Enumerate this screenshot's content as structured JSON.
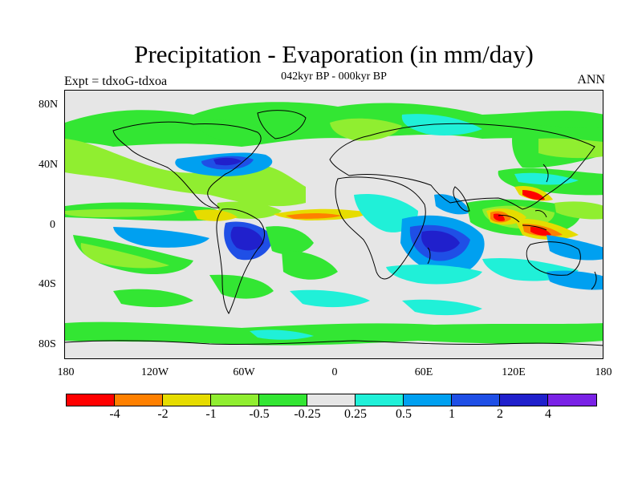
{
  "header": {
    "title": "Precipitation - Evaporation (in mm/day)",
    "subtitle": "042kyr BP - 000kyr BP",
    "left_label": "Expt = tdxoG-tdxoa",
    "right_label": "ANN"
  },
  "axes": {
    "y_ticks": [
      "80N",
      "40N",
      "0",
      "40S",
      "80S"
    ],
    "x_ticks": [
      "180",
      "120W",
      "60W",
      "0",
      "60E",
      "120E",
      "180"
    ]
  },
  "colorbar": {
    "colors": [
      "#ff0000",
      "#ff8000",
      "#e6dc00",
      "#90ee30",
      "#33e633",
      "#e6e6e6",
      "#20f0d8",
      "#00a0f0",
      "#1f4fe6",
      "#2020cc",
      "#7a22e6"
    ],
    "labels": [
      "-4",
      "-2",
      "-1",
      "-0.5",
      "-0.25",
      "0.25",
      "0.5",
      "1",
      "2",
      "4"
    ]
  },
  "map": {
    "background": "#e6e6e6",
    "coastline_color": "#000000"
  }
}
